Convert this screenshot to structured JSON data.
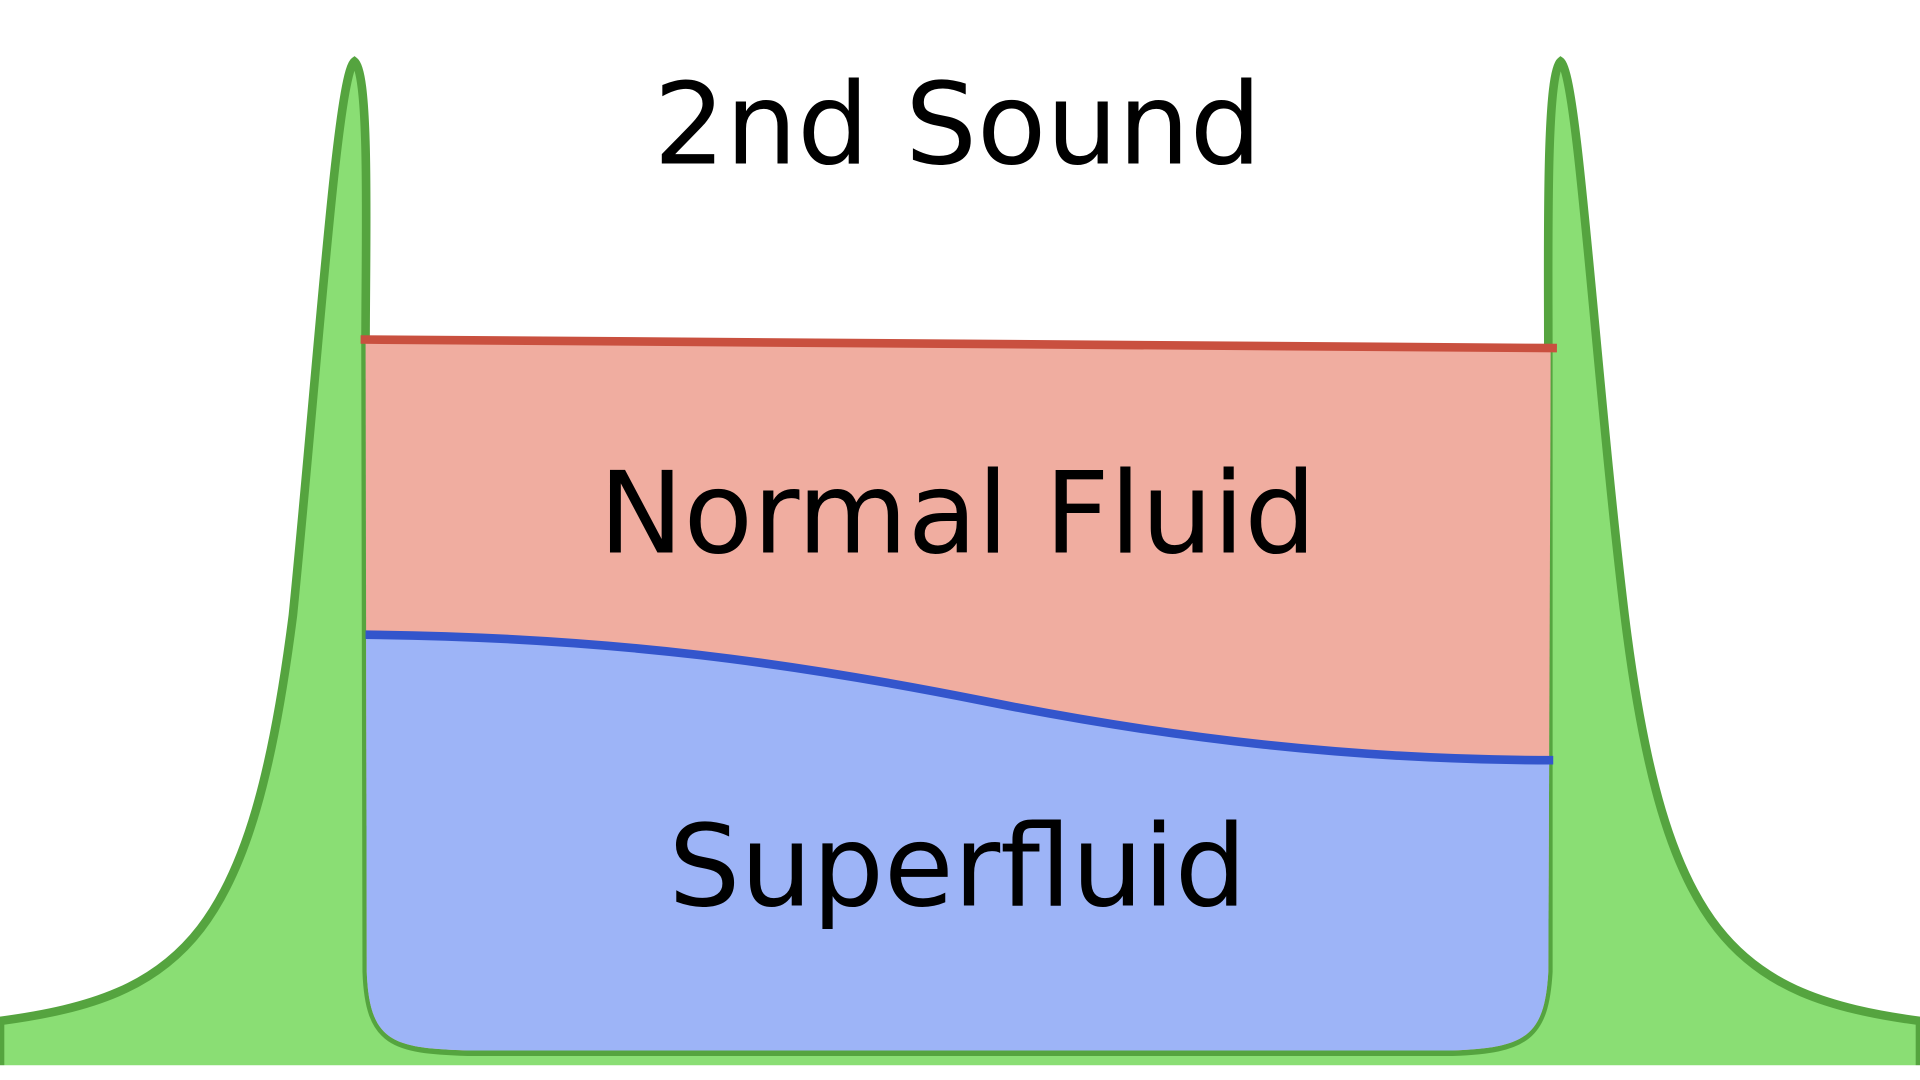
{
  "labels": {
    "top": "2nd Sound",
    "middle": "Normal Fluid",
    "bottom": "Superfluid"
  },
  "colors": {
    "green_fill": "#8ade74",
    "green_stroke": "#55a43f",
    "normal_fluid_fill": "#f0ada0",
    "normal_fluid_line": "#c9503f",
    "superfluid_fill": "#9db4f7",
    "superfluid_line": "#3355cc"
  }
}
